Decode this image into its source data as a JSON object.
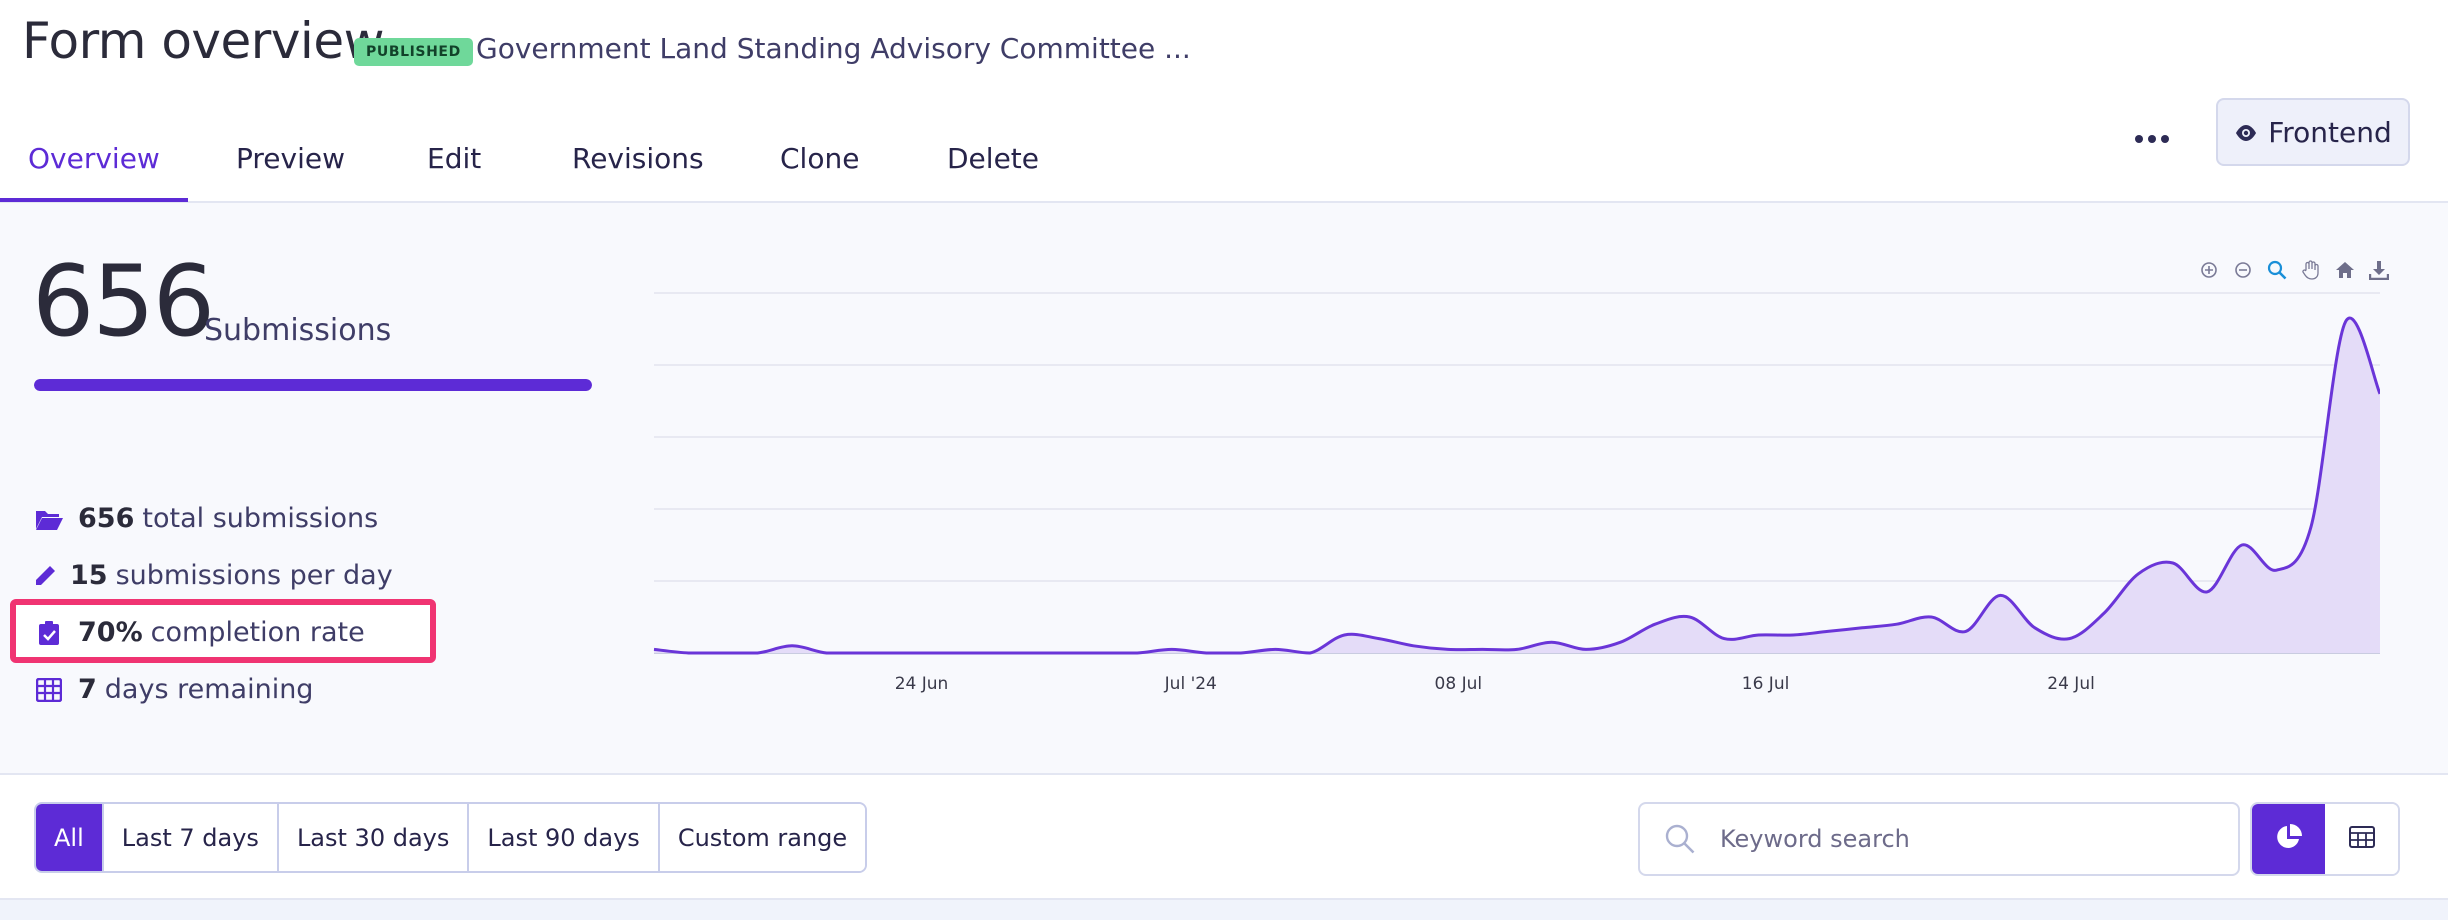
{
  "header": {
    "title": "Form overview",
    "status_badge": "PUBLISHED",
    "form_name": "Government Land Standing Advisory Committee ...",
    "tabs": [
      {
        "label": "Overview",
        "active": true
      },
      {
        "label": "Preview"
      },
      {
        "label": "Edit"
      },
      {
        "label": "Revisions"
      },
      {
        "label": "Clone"
      },
      {
        "label": "Delete"
      }
    ],
    "more_icon": "ellipsis-icon",
    "frontend_button": {
      "label": "Frontend",
      "icon": "eye-icon"
    }
  },
  "summary": {
    "count": "656",
    "count_label": "Submissions",
    "progress_fraction": 1.0,
    "stats": [
      {
        "icon": "folder-open-icon",
        "value": "656",
        "text": "total submissions"
      },
      {
        "icon": "pencil-icon",
        "value": "15",
        "text": "submissions per day"
      },
      {
        "icon": "clipboard-check-icon",
        "value": "70%",
        "text": "completion rate",
        "highlighted": true
      },
      {
        "icon": "calendar-grid-icon",
        "value": "7",
        "text": "days remaining"
      }
    ]
  },
  "chart_toolbar": [
    "zoom-in-icon",
    "zoom-out-icon",
    "zoom-selection-icon",
    "pan-hand-icon",
    "reset-home-icon",
    "download-icon"
  ],
  "chart_data": {
    "type": "area",
    "xlabel": "",
    "ylabel": "",
    "grid": true,
    "x_tick_labels": [
      "24 Jun",
      "Jul '24",
      "08 Jul",
      "16 Jul",
      "24 Jul"
    ],
    "x_tick_positions": [
      0.155,
      0.311,
      0.466,
      0.644,
      0.821
    ],
    "relative_values": [
      0.01,
      0.0,
      0.0,
      0.0,
      0.02,
      0.0,
      0.0,
      0.0,
      0.0,
      0.0,
      0.0,
      0.0,
      0.0,
      0.0,
      0.0,
      0.01,
      0.0,
      0.0,
      0.01,
      0.0,
      0.05,
      0.04,
      0.02,
      0.01,
      0.01,
      0.01,
      0.03,
      0.01,
      0.03,
      0.08,
      0.1,
      0.04,
      0.05,
      0.05,
      0.06,
      0.07,
      0.08,
      0.1,
      0.06,
      0.16,
      0.07,
      0.04,
      0.11,
      0.22,
      0.25,
      0.17,
      0.3,
      0.23,
      0.35,
      0.92,
      0.72
    ],
    "color": "#6a35d8",
    "fill": "#e4dcf8"
  },
  "filters": {
    "ranges": [
      {
        "label": "All",
        "active": true
      },
      {
        "label": "Last 7 days"
      },
      {
        "label": "Last 30 days"
      },
      {
        "label": "Last 90 days"
      },
      {
        "label": "Custom range"
      }
    ],
    "search_placeholder": "Keyword search",
    "search_value": "",
    "views": [
      {
        "icon": "pie-chart-icon",
        "active": true
      },
      {
        "icon": "table-icon",
        "active": false
      }
    ]
  },
  "colors": {
    "accent": "#5d2bd6",
    "badge": "#6fd89a",
    "highlight": "#f03472"
  }
}
